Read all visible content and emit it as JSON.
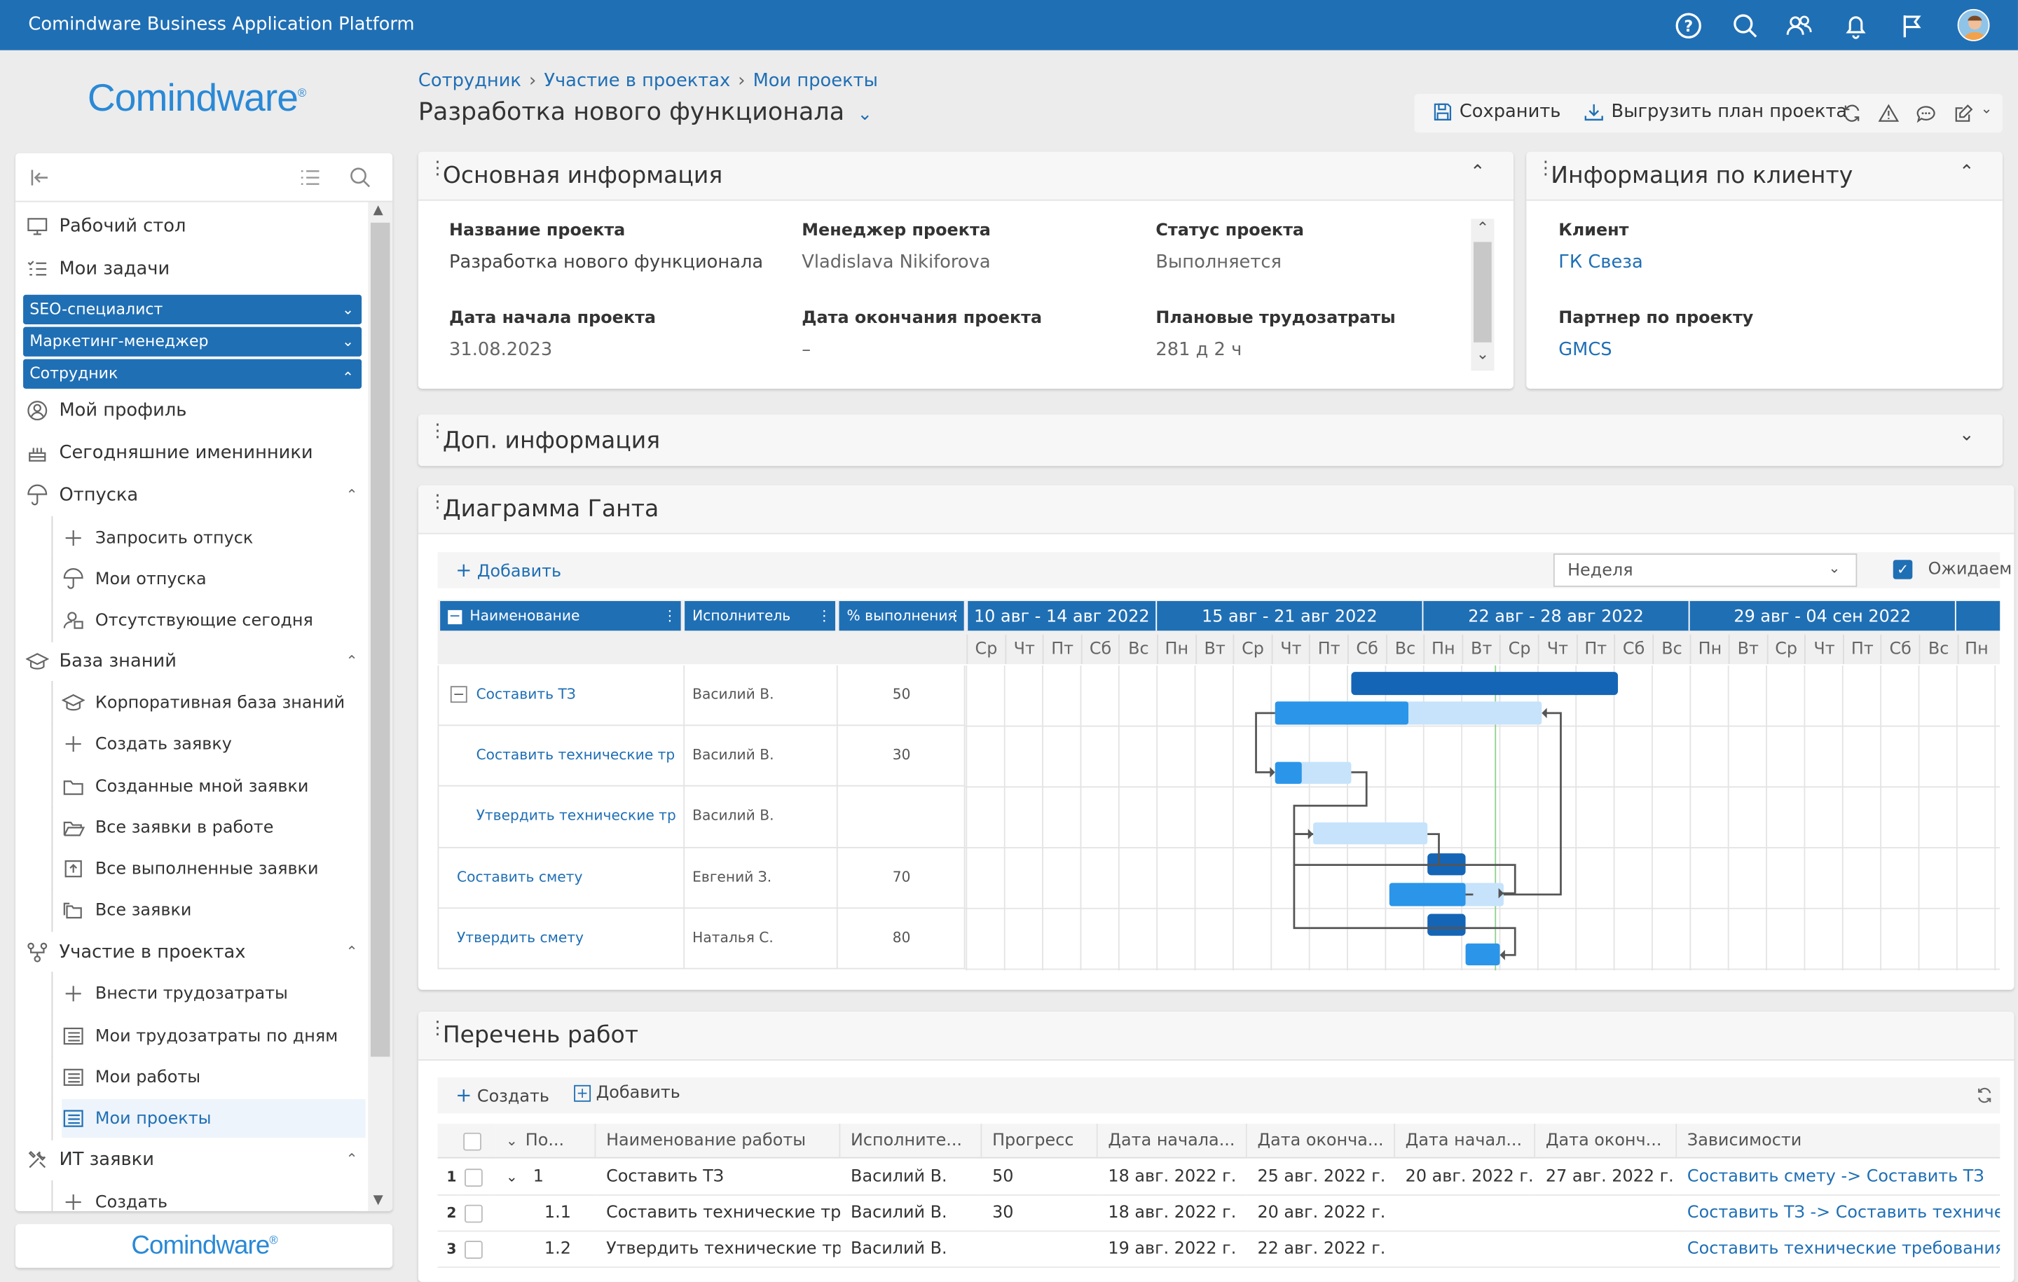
{
  "app": {
    "title": "Comindware Business Application Platform",
    "logo_text": "Comindware",
    "logo_mark": "®"
  },
  "topbar": {
    "icons": [
      "help-icon",
      "search-icon",
      "users-icon",
      "bell-icon",
      "flag-icon",
      "avatar"
    ]
  },
  "sidebar": {
    "items": {
      "desktop": "Рабочий стол",
      "my_tasks": "Мои задачи",
      "group_seo": "SEO-специалист",
      "group_marketing": "Маркетинг-менеджер",
      "group_employee": "Сотрудник",
      "my_profile": "Мой профиль",
      "birthdays": "Сегодняшние именинники",
      "vacations": "Отпуска",
      "request_vacation": "Запросить отпуск",
      "my_vacations": "Мои отпуска",
      "absent_today": "Отсутствующие сегодня",
      "knowledge_base": "База знаний",
      "corp_kb": "Корпоративная база знаний",
      "create_request": "Создать заявку",
      "my_requests": "Созданные мной заявки",
      "all_in_work": "Все заявки в работе",
      "all_done": "Все выполненные заявки",
      "all_requests": "Все заявки",
      "projects": "Участие в проектах",
      "enter_effort": "Внести трудозатраты",
      "my_effort_days": "Мои трудозатраты по дням",
      "my_works": "Мои работы",
      "my_projects": "Мои проекты",
      "it_requests": "ИТ заявки",
      "create": "Создать"
    }
  },
  "breadcrumbs": [
    "Сотрудник",
    "Участие в проектах",
    "Мои проекты"
  ],
  "page_title": "Разработка нового функционала",
  "toolbar": {
    "save": "Сохранить",
    "export": "Выгрузить план проекта"
  },
  "main_info": {
    "title": "Основная информация",
    "project_name_label": "Название проекта",
    "project_name": "Разработка нового функционала",
    "manager_label": "Менеджер проекта",
    "manager": "Vladislava Nikiforova",
    "status_label": "Статус проекта",
    "status": "Выполняется",
    "start_label": "Дата начала проекта",
    "start": "31.08.2023",
    "end_label": "Дата окончания проекта",
    "end": "–",
    "planned_label": "Плановые трудозатраты",
    "planned": "281 д 2 ч"
  },
  "client_info": {
    "title": "Информация по клиенту",
    "client_label": "Клиент",
    "client": "ГК Свеза",
    "partner_label": "Партнер по проекту",
    "partner": "GMCS"
  },
  "extra_info": {
    "title": "Доп. информация"
  },
  "gantt": {
    "title": "Диаграмма Ганта",
    "add": "Добавить",
    "scale": "Неделя",
    "expected_label": "Ожидаем",
    "columns": {
      "name": "Наименование",
      "assignee": "Исполнитель",
      "percent": "% выполнения"
    },
    "weeks": [
      "10 авг - 14 авг 2022",
      "15 авг - 21 авг 2022",
      "22 авг - 28 авг 2022",
      "29 авг - 04 сен 2022"
    ],
    "days": [
      "Ср",
      "Чт",
      "Пт",
      "Сб",
      "Вс",
      "Пн",
      "Вт",
      "Ср",
      "Чт",
      "Пт",
      "Сб",
      "Вс",
      "Пн",
      "Вт",
      "Ср",
      "Чт",
      "Пт",
      "Сб",
      "Вс",
      "Пн",
      "Вт",
      "Ср",
      "Чт",
      "Пт",
      "Сб",
      "Вс",
      "Пн"
    ],
    "rows": [
      {
        "name": "Составить ТЗ",
        "assignee": "Василий В.",
        "percent": "50"
      },
      {
        "name": "Составить технические тре...",
        "assignee": "Василий В.",
        "percent": "30"
      },
      {
        "name": "Утвердить технические тре...",
        "assignee": "Василий В.",
        "percent": ""
      },
      {
        "name": "Составить смету",
        "assignee": "Евгений З.",
        "percent": "70"
      },
      {
        "name": "Утвердить смету",
        "assignee": "Наталья С.",
        "percent": "80"
      }
    ]
  },
  "works": {
    "title": "Перечень работ",
    "create": "Создать",
    "add": "Добавить",
    "columns": [
      "По...",
      "Наименование работы",
      "Исполните...",
      "Прогресс",
      "Дата начала...",
      "Дата оконча...",
      "Дата начал...",
      "Дата оконч...",
      "Зависимости"
    ],
    "rows": [
      {
        "n": "1",
        "pos": "1",
        "name": "Составить ТЗ",
        "assignee": "Василий В.",
        "progress": "50",
        "start": "18 авг. 2022 г.",
        "end": "25 авг. 2022 г.",
        "start2": "20 авг. 2022 г.",
        "end2": "27 авг. 2022 г.",
        "deps": "Составить смету -> Составить ТЗ"
      },
      {
        "n": "2",
        "pos": "1.1",
        "name": "Составить технические тр...",
        "assignee": "Василий В.",
        "progress": "30",
        "start": "18 авг. 2022 г.",
        "end": "20 авг. 2022 г.",
        "start2": "",
        "end2": "",
        "deps": "Составить ТЗ -> Составить технические т"
      },
      {
        "n": "3",
        "pos": "1.2",
        "name": "Утвердить технические тр...",
        "assignee": "Василий В.",
        "progress": "",
        "start": "19 авг. 2022 г.",
        "end": "22 авг. 2022 г.",
        "start2": "",
        "end2": "",
        "deps": "Составить технические требования -> Ут"
      }
    ]
  },
  "colors": {
    "brand": "#1f6fb5",
    "bar_dark": "#1565b6",
    "bar_mid": "#2b95e9",
    "bar_light": "#c6e3fb"
  }
}
